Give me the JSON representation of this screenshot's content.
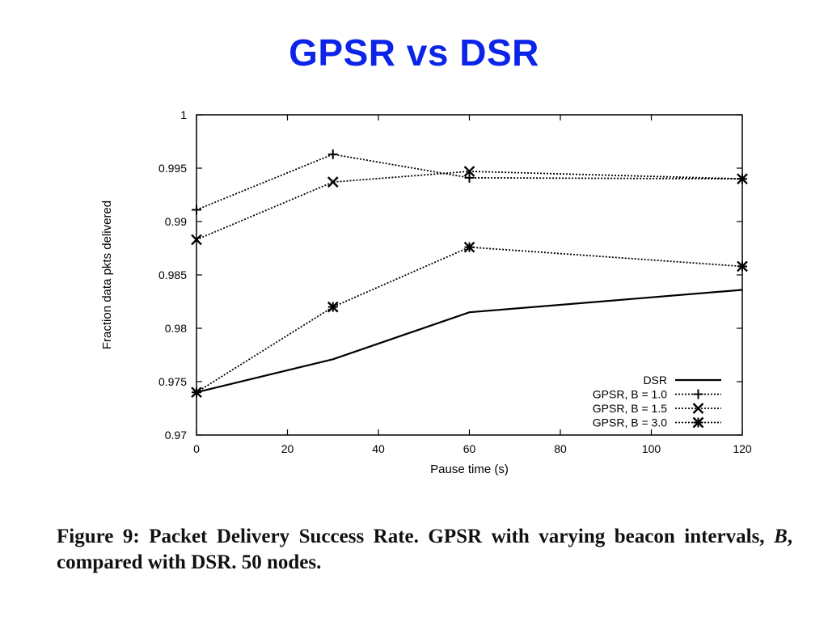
{
  "slide": {
    "title": "GPSR vs DSR"
  },
  "caption": {
    "prefix": "Figure 9:  Packet Delivery Success Rate.  GPSR with varying beacon intervals, ",
    "symbol": "B",
    "suffix": ", compared with DSR. 50 nodes."
  },
  "chart_data": {
    "type": "line",
    "xlabel": "Pause time (s)",
    "ylabel": "Fraction data pkts delivered",
    "xlim": [
      0,
      120
    ],
    "ylim": [
      0.97,
      1.0
    ],
    "xticks": [
      0,
      20,
      40,
      60,
      80,
      100,
      120
    ],
    "xtick_labels": [
      "0",
      "20",
      "40",
      "60",
      "80",
      "100",
      "120"
    ],
    "yticks": [
      0.97,
      0.975,
      0.98,
      0.985,
      0.99,
      0.995,
      1.0
    ],
    "ytick_labels": [
      "0.97",
      "0.975",
      "0.98",
      "0.985",
      "0.99",
      "0.995",
      "1"
    ],
    "grid": false,
    "legend_position": "bottom-right",
    "line_color": "#000000",
    "series": [
      {
        "name": "DSR",
        "style": "solid",
        "marker": "none",
        "x": [
          0,
          30,
          60,
          120
        ],
        "y": [
          0.974,
          0.9771,
          0.9815,
          0.9836
        ]
      },
      {
        "name": "GPSR, B = 1.0",
        "style": "dotted",
        "marker": "plus",
        "x": [
          0,
          30,
          60,
          120
        ],
        "y": [
          0.9911,
          0.9963,
          0.9941,
          0.994
        ]
      },
      {
        "name": "GPSR, B = 1.5",
        "style": "dotted",
        "marker": "cross",
        "x": [
          0,
          30,
          60,
          120
        ],
        "y": [
          0.9883,
          0.9937,
          0.9947,
          0.994
        ]
      },
      {
        "name": "GPSR, B = 3.0",
        "style": "dotted",
        "marker": "star",
        "x": [
          0,
          30,
          60,
          120
        ],
        "y": [
          0.974,
          0.982,
          0.9876,
          0.9858
        ]
      }
    ]
  }
}
